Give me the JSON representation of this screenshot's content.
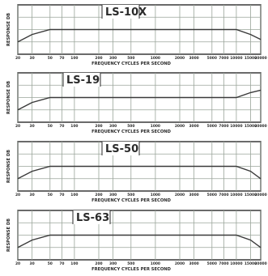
{
  "chart_data": [
    {
      "type": "line",
      "title": "LS-10X",
      "ylabel": "RESPONSE DB",
      "xlabel": "FREQUENCY CYCLES PER SECOND",
      "x_ticks": [
        "20",
        "30",
        "50",
        "70",
        "100",
        "200",
        "300",
        "500",
        "1000",
        "2000",
        "3000",
        "5000",
        "7000",
        "10000",
        "15000",
        "20000"
      ],
      "x_tick_labels": [
        "20",
        "30",
        "50",
        "70",
        "100",
        "200",
        "300",
        "500",
        "1000",
        "2000",
        "3000",
        "5000",
        "7000",
        "10000",
        "15000",
        "20000"
      ],
      "x_scale": "log",
      "grid": true,
      "series": [
        {
          "x": [
            20,
            30,
            50,
            100,
            500,
            1000,
            5000,
            10000,
            15000,
            20000
          ],
          "y": [
            0.5,
            0.8,
            1.0,
            1.0,
            1.0,
            1.0,
            1.0,
            1.0,
            0.8,
            0.6
          ]
        }
      ]
    },
    {
      "type": "line",
      "title": "LS-19",
      "ylabel": "RESPONSE DB",
      "xlabel": "FREQUENCY CYCLES PER SECOND",
      "x_ticks": [
        "20",
        "30",
        "50",
        "70",
        "100",
        "200",
        "300",
        "500",
        "1000",
        "2000",
        "3000",
        "5000",
        "7000",
        "10000",
        "15000",
        "20000"
      ],
      "x_tick_labels": [
        "20",
        "30",
        "50",
        "70",
        "100",
        "200",
        "300",
        "500",
        "1000",
        "2000",
        "3000",
        "5000",
        "7000",
        "10000",
        "15000",
        "20000"
      ],
      "x_scale": "log",
      "grid": true,
      "series": [
        {
          "x": [
            20,
            30,
            50,
            100,
            500,
            1000,
            5000,
            10000,
            15000,
            20000
          ],
          "y": [
            0.5,
            0.8,
            1.0,
            1.0,
            1.0,
            1.0,
            1.0,
            1.0,
            1.2,
            1.3
          ]
        }
      ]
    },
    {
      "type": "line",
      "title": "LS-50",
      "ylabel": "RESPONSE DB",
      "xlabel": "FREQUENCY CYCLES PER SECOND",
      "x_ticks": [
        "20",
        "30",
        "50",
        "70",
        "100",
        "200",
        "300",
        "500",
        "1000",
        "2000",
        "3000",
        "5000",
        "7000",
        "10000",
        "15000",
        "20000"
      ],
      "x_tick_labels": [
        "20",
        "30",
        "50",
        "70",
        "100",
        "200",
        "300",
        "500",
        "1000",
        "2000",
        "3000",
        "5000",
        "7000",
        "10000",
        "15000",
        "20000"
      ],
      "x_scale": "log",
      "grid": true,
      "series": [
        {
          "x": [
            20,
            30,
            50,
            100,
            500,
            1000,
            5000,
            10000,
            15000,
            20000
          ],
          "y": [
            0.5,
            0.8,
            1.0,
            1.0,
            1.0,
            1.0,
            1.0,
            1.0,
            0.8,
            0.5
          ]
        }
      ]
    },
    {
      "type": "line",
      "title": "LS-63",
      "ylabel": "RESPONSE DB",
      "xlabel": "FREQUENCY CYCLES PER SECOND",
      "x_ticks": [
        "20",
        "30",
        "50",
        "70",
        "100",
        "200",
        "300",
        "500",
        "1000",
        "2000",
        "3000",
        "5000",
        "7000",
        "10000",
        "15000",
        "20000"
      ],
      "x_tick_labels": [
        "20",
        "30",
        "50",
        "70",
        "100",
        "200",
        "300",
        "500",
        "1000",
        "2000",
        "3000",
        "5000",
        "7000",
        "10000",
        "15000",
        "20000"
      ],
      "x_scale": "log",
      "grid": true,
      "series": [
        {
          "x": [
            20,
            30,
            50,
            100,
            500,
            1000,
            5000,
            10000,
            15000,
            20000
          ],
          "y": [
            0.5,
            0.8,
            1.0,
            1.0,
            1.0,
            1.0,
            1.0,
            1.0,
            0.8,
            0.5
          ]
        }
      ]
    }
  ],
  "colors": {
    "ink": "#2a2a2a",
    "grid": "#9aa59a",
    "paper": "#ffffff",
    "curve": "#3a3a3a"
  }
}
